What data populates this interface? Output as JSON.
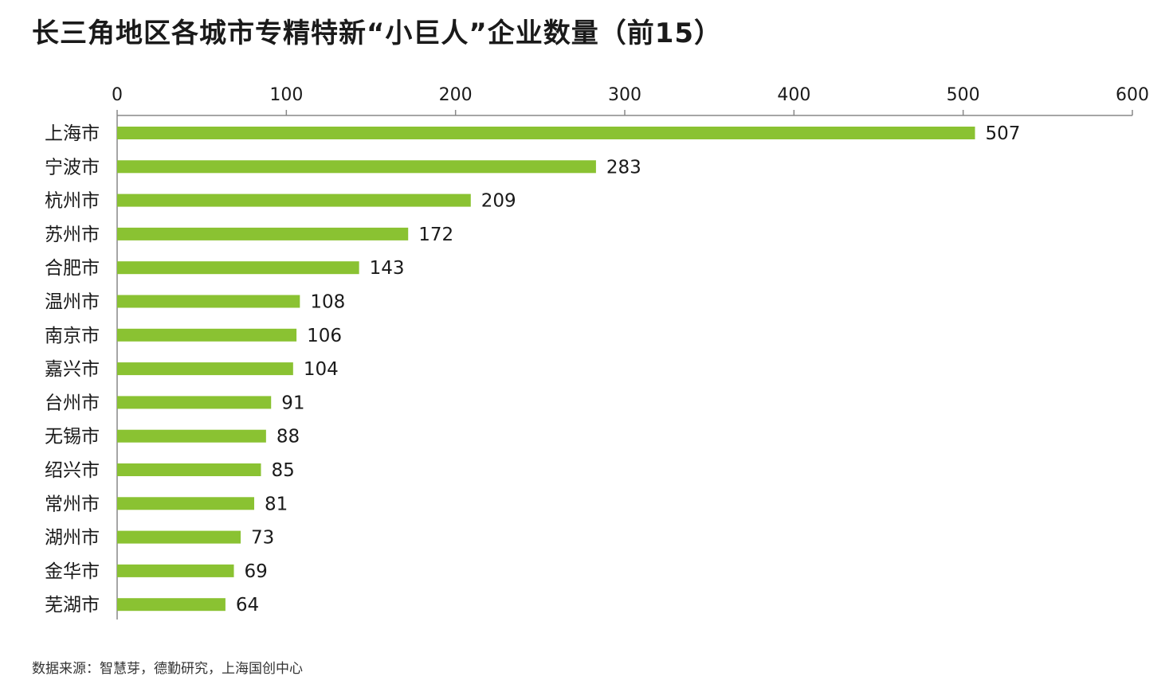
{
  "title": "长三角地区各城市专精特新“小巨人”企业数量（前15）",
  "source": "数据来源：智慧芽，德勤研究，上海国创中心",
  "colors": {
    "bar": "#8ac232",
    "axis": "#888888",
    "text": "#1a1a1a"
  },
  "chart_data": {
    "type": "bar",
    "orientation": "horizontal",
    "title": "长三角地区各城市专精特新“小巨人”企业数量（前15）",
    "xlabel": "",
    "ylabel": "",
    "xlim": [
      0,
      600
    ],
    "x_ticks": [
      "0",
      "100",
      "200",
      "300",
      "400",
      "500",
      "600"
    ],
    "x_axis_position": "top",
    "grid": false,
    "legend": "none",
    "categories": [
      "上海市",
      "宁波市",
      "杭州市",
      "苏州市",
      "合肥市",
      "温州市",
      "南京市",
      "嘉兴市",
      "台州市",
      "无锡市",
      "绍兴市",
      "常州市",
      "湖州市",
      "金华市",
      "芜湖市"
    ],
    "values": [
      507,
      283,
      209,
      172,
      143,
      108,
      106,
      104,
      91,
      88,
      85,
      81,
      73,
      69,
      64
    ],
    "data_labels": [
      "507",
      "283",
      "209",
      "172",
      "143",
      "108",
      "106",
      "104",
      "91",
      "88",
      "85",
      "81",
      "73",
      "69",
      "64"
    ]
  }
}
